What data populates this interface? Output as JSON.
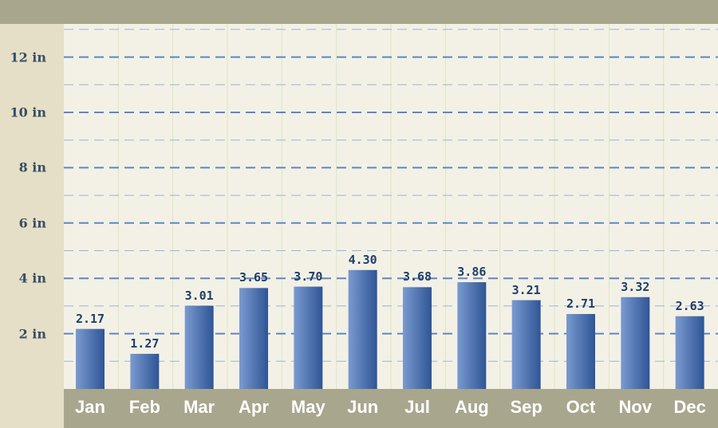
{
  "chart_data": {
    "type": "bar",
    "categories": [
      "Jan",
      "Feb",
      "Mar",
      "Apr",
      "May",
      "Jun",
      "Jul",
      "Aug",
      "Sep",
      "Oct",
      "Nov",
      "Dec"
    ],
    "values": [
      2.17,
      1.27,
      3.01,
      3.65,
      3.7,
      4.3,
      3.68,
      3.86,
      3.21,
      2.71,
      3.32,
      2.63
    ],
    "value_labels": [
      "2.17",
      "1.27",
      "3.01",
      "3.65",
      "3.70",
      "4.30",
      "3.68",
      "3.86",
      "3.21",
      "2.71",
      "3.32",
      "2.63"
    ],
    "y_ticks": [
      2,
      4,
      6,
      8,
      10,
      12
    ],
    "y_tick_labels": [
      "2 in",
      "4 in",
      "6 in",
      "8 in",
      "10 in",
      "12 in"
    ],
    "ylim": [
      0,
      12
    ],
    "unit": "in",
    "grid": true,
    "title": "",
    "xlabel": "",
    "ylabel": ""
  },
  "colors": {
    "frame": "#a9a68e",
    "y_panel": "#e4dfc6",
    "plot_background": "#f3f1e6",
    "major_grid": "#5e86c4",
    "minor_grid": "#9bb3d6",
    "vertical_grid": "#dce6bf",
    "bar_light": "#7a9ad0",
    "bar_dark": "#2f5595",
    "value_label": "#1f3e6a",
    "tick_label": "#3a4d66",
    "month_label": "#ffffff"
  }
}
